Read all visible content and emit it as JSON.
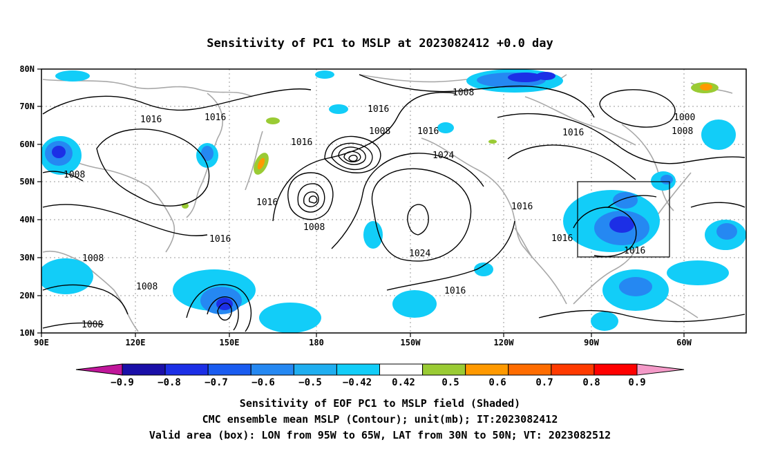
{
  "title": "Sensitivity of PC1 to MSLP at 2023082412 +0.0 day",
  "lat_ticks": [
    "80N",
    "70N",
    "60N",
    "50N",
    "40N",
    "30N",
    "20N",
    "10N"
  ],
  "lon_ticks": [
    "90E",
    "120E",
    "150E",
    "180",
    "150W",
    "120W",
    "90W",
    "60W"
  ],
  "contour_labels": [
    "1008",
    "1016",
    "1016",
    "1000",
    "1008",
    "1016",
    "1016",
    "1016",
    "1008",
    "1024",
    "1016",
    "1016",
    "1008",
    "1016",
    "1016",
    "1016",
    "1008",
    "1024",
    "1008",
    "1008",
    "1016",
    "1016",
    "1008"
  ],
  "colorbar": {
    "labels": [
      "−0.9",
      "−0.8",
      "−0.7",
      "−0.6",
      "−0.5",
      "−0.42",
      "0.42",
      "0.5",
      "0.6",
      "0.7",
      "0.8",
      "0.9"
    ],
    "colors": [
      "#c0169a",
      "#1a0fa8",
      "#1c2fe6",
      "#1a5cf0",
      "#2588f2",
      "#1faef0",
      "#12cdf8",
      "#ffffff",
      "#9acb34",
      "#ff9900",
      "#ff6c00",
      "#ff3a00",
      "#ff0000",
      "#f49ac8"
    ]
  },
  "caption": [
    "Sensitivity of EOF PC1 to MSLP field (Shaded)",
    "CMC ensemble mean MSLP (Contour); unit(mb); IT:2023082412",
    "Valid area (box): LON from 95W to 65W, LAT from 30N to 50N; VT: 2023082512"
  ]
}
